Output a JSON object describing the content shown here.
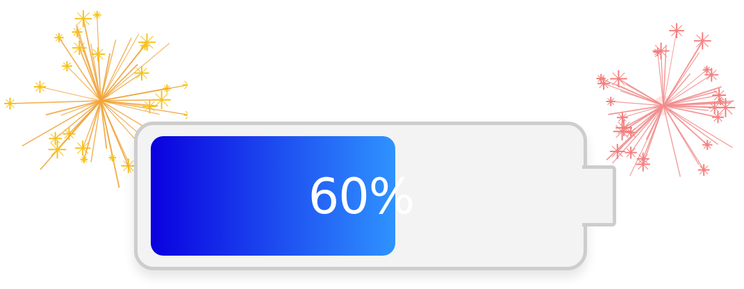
{
  "battery": {
    "level_label": "60%",
    "level_fraction": 0.6,
    "fill_gradient": [
      "#0a00df",
      "#2f93ff"
    ],
    "body_color": "#f3f3f3",
    "border_color": "#cdcdcd"
  },
  "fireworks": [
    {
      "name": "gold-firework",
      "ray_color": "#f0a43a",
      "star_color": "#f7c21a",
      "core_color": "#fff4d6"
    },
    {
      "name": "pink-firework",
      "ray_color": "#f28c8c",
      "star_color": "#f47f7f",
      "core_color": "#ffe3e3"
    }
  ]
}
